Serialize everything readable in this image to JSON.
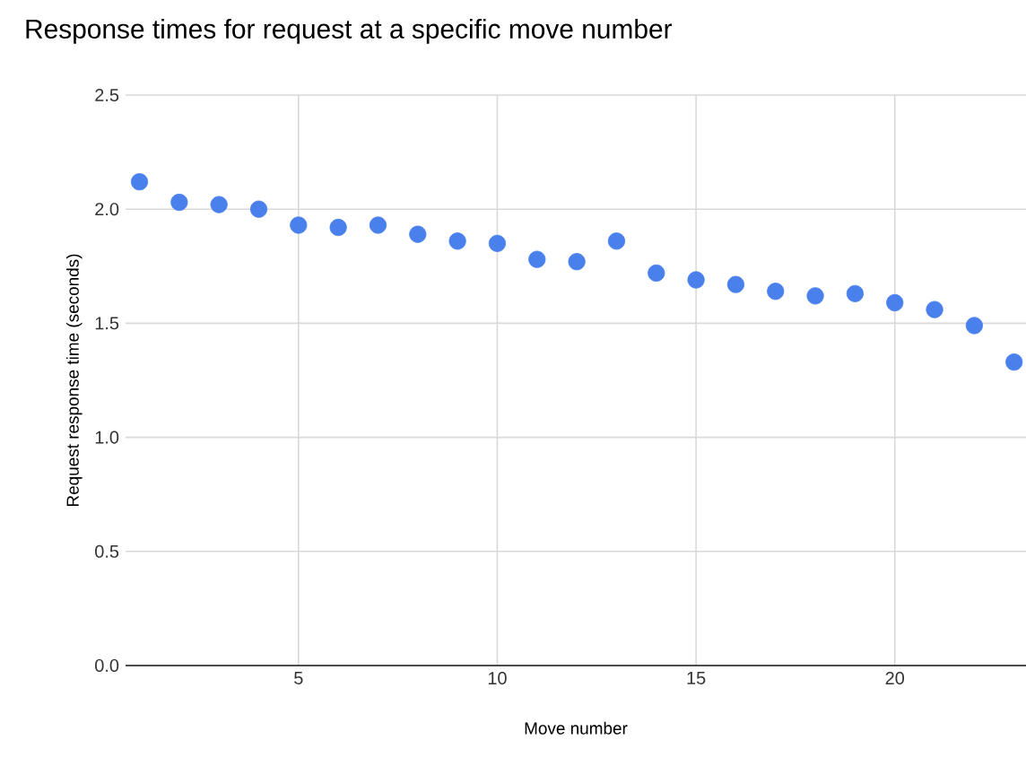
{
  "chart_data": {
    "type": "scatter",
    "title": "Response times for request at a specific move number",
    "xlabel": "Move number",
    "ylabel": "Request response time (seconds)",
    "x": [
      1,
      2,
      3,
      4,
      5,
      6,
      7,
      8,
      9,
      10,
      11,
      12,
      13,
      14,
      15,
      16,
      17,
      18,
      19,
      20,
      21,
      22,
      23
    ],
    "values": [
      2.12,
      2.03,
      2.02,
      2.0,
      1.93,
      1.92,
      1.93,
      1.89,
      1.86,
      1.85,
      1.78,
      1.77,
      1.86,
      1.72,
      1.69,
      1.67,
      1.64,
      1.62,
      1.63,
      1.59,
      1.56,
      1.49,
      1.33
    ],
    "color": "#4a80ec",
    "marker": "circle",
    "grid": true,
    "xlim": [
      0.65,
      23.3
    ],
    "xticks": [
      5,
      10,
      15,
      20
    ],
    "ylim": [
      0,
      2.5
    ],
    "yticks": [
      {
        "value": 0,
        "label": "0.0"
      },
      {
        "value": 0.5,
        "label": "0.5"
      },
      {
        "value": 1,
        "label": "1.0"
      },
      {
        "value": 1.5,
        "label": "1.5"
      },
      {
        "value": 2,
        "label": "2.0"
      },
      {
        "value": 2.5,
        "label": "2.5"
      }
    ]
  }
}
